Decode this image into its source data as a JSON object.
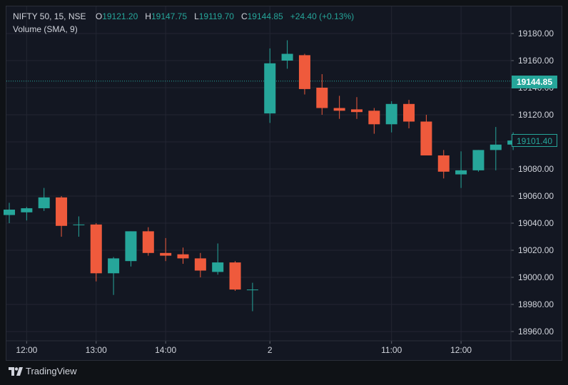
{
  "legend": {
    "symbol": "NIFTY 50, 15, NSE",
    "open_label": "O",
    "open": "19121.20",
    "high_label": "H",
    "high": "19147.75",
    "low_label": "L",
    "low": "19119.70",
    "close_label": "C",
    "close": "19144.85",
    "change": "+24.40 (+0.13%)",
    "volume": "Volume (SMA, 9)"
  },
  "price_tags": {
    "last": "19144.85",
    "current": "19101.40"
  },
  "brand": "TradingView",
  "colors": {
    "up": "#26a69a",
    "down": "#ef5a3c",
    "background": "#131722",
    "grid": "#232632",
    "text": "#d1d4dc"
  },
  "chart_data": {
    "type": "candlestick",
    "ylim": [
      18950,
      19190
    ],
    "y_ticks": [
      "19180.00",
      "19160.00",
      "19140.00",
      "19120.00",
      "19100.00",
      "19080.00",
      "19060.00",
      "19040.00",
      "19020.00",
      "19000.00",
      "18980.00",
      "18960.00"
    ],
    "x_ticks": [
      {
        "label": "12:00",
        "index": 1
      },
      {
        "label": "13:00",
        "index": 5
      },
      {
        "label": "14:00",
        "index": 9
      },
      {
        "label": "2",
        "index": 15
      },
      {
        "label": "11:00",
        "index": 22
      },
      {
        "label": "12:00",
        "index": 26
      }
    ],
    "candles": [
      {
        "o": 19046,
        "h": 19055,
        "l": 19040,
        "c": 19050
      },
      {
        "o": 19048,
        "h": 19052,
        "l": 19042,
        "c": 19051
      },
      {
        "o": 19051,
        "h": 19066,
        "l": 19049,
        "c": 19059
      },
      {
        "o": 19059,
        "h": 19060,
        "l": 19030,
        "c": 19038
      },
      {
        "o": 19039,
        "h": 19045,
        "l": 19030,
        "c": 19039
      },
      {
        "o": 19039,
        "h": 19040,
        "l": 18997,
        "c": 19003
      },
      {
        "o": 19003,
        "h": 19015,
        "l": 18987,
        "c": 19014
      },
      {
        "o": 19012,
        "h": 19034,
        "l": 19008,
        "c": 19034
      },
      {
        "o": 19034,
        "h": 19037,
        "l": 19016,
        "c": 19018
      },
      {
        "o": 19018,
        "h": 19029,
        "l": 19012,
        "c": 19016
      },
      {
        "o": 19017,
        "h": 19022,
        "l": 19010,
        "c": 19014
      },
      {
        "o": 19014,
        "h": 19018,
        "l": 19000,
        "c": 19005
      },
      {
        "o": 19004,
        "h": 19025,
        "l": 19002,
        "c": 19011
      },
      {
        "o": 19011,
        "h": 19012,
        "l": 18990,
        "c": 18991
      },
      {
        "o": 18991,
        "h": 18996,
        "l": 18975,
        "c": 18991
      },
      {
        "o": 19121,
        "h": 19169,
        "l": 19114,
        "c": 19158
      },
      {
        "o": 19160,
        "h": 19175,
        "l": 19154,
        "c": 19165
      },
      {
        "o": 19164,
        "h": 19165,
        "l": 19135,
        "c": 19139
      },
      {
        "o": 19140,
        "h": 19150,
        "l": 19120,
        "c": 19125
      },
      {
        "o": 19125,
        "h": 19134,
        "l": 19117,
        "c": 19123
      },
      {
        "o": 19124,
        "h": 19133,
        "l": 19117,
        "c": 19122
      },
      {
        "o": 19123,
        "h": 19125,
        "l": 19106,
        "c": 19113
      },
      {
        "o": 19113,
        "h": 19130,
        "l": 19107,
        "c": 19128
      },
      {
        "o": 19128,
        "h": 19131,
        "l": 19110,
        "c": 19115
      },
      {
        "o": 19115,
        "h": 19120,
        "l": 19091,
        "c": 19090
      },
      {
        "o": 19090,
        "h": 19094,
        "l": 19073,
        "c": 19078
      },
      {
        "o": 19076,
        "h": 19093,
        "l": 19066,
        "c": 19079
      },
      {
        "o": 19079,
        "h": 19094,
        "l": 19078,
        "c": 19094
      },
      {
        "o": 19094,
        "h": 19111,
        "l": 19079,
        "c": 19098
      },
      {
        "o": 19098,
        "h": 19107,
        "l": 19094,
        "c": 19101
      }
    ]
  }
}
